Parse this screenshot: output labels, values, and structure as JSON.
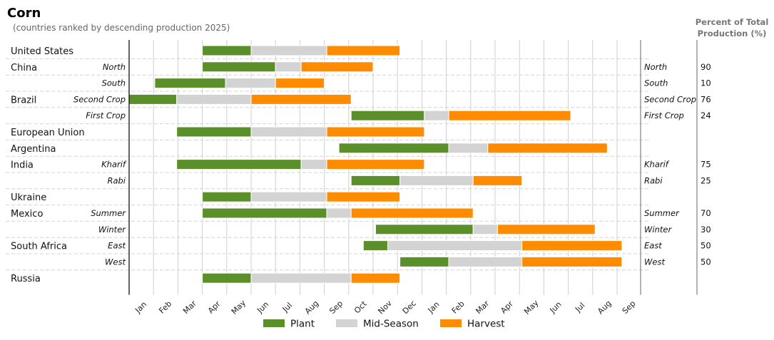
{
  "chart_data": {
    "type": "bar",
    "subtype": "gantt-calendar",
    "title": "Corn",
    "subtitle": "(countries ranked by descending production 2025)",
    "pct_header": [
      "Percent of Total",
      "Production (%)"
    ],
    "x_ticks": [
      "Jan",
      "Feb",
      "Mar",
      "Apr",
      "May",
      "Jun",
      "Jul",
      "Aug",
      "Sep",
      "Oct",
      "Nov",
      "Dec",
      "Jan",
      "Feb",
      "Mar",
      "Apr",
      "May",
      "Jun",
      "Jul",
      "Aug",
      "Sep"
    ],
    "xlim": [
      0,
      21
    ],
    "legend": [
      {
        "name": "Plant",
        "color": "#5b8f29"
      },
      {
        "name": "Mid-Season",
        "color": "#d3d3d3"
      },
      {
        "name": "Harvest",
        "color": "#ff8c00"
      }
    ],
    "series_colors": {
      "plant": "#5b8f29",
      "mid": "#d3d3d3",
      "harvest": "#ff8c00"
    },
    "rows": [
      {
        "country": "United States",
        "sub": "",
        "pct": "",
        "plant": [
          3.0,
          5.0
        ],
        "mid": [
          5.0,
          8.1
        ],
        "harvest": [
          8.1,
          11.1
        ]
      },
      {
        "country": "China",
        "sub": "North",
        "pct": "90",
        "plant": [
          3.0,
          6.0
        ],
        "mid": [
          6.0,
          7.05
        ],
        "harvest": [
          7.05,
          10.0
        ]
      },
      {
        "country": "",
        "sub": "South",
        "pct": "10",
        "plant": [
          1.05,
          3.95
        ],
        "mid": [
          3.95,
          6.0
        ],
        "harvest": [
          6.0,
          8.0
        ]
      },
      {
        "country": "Brazil",
        "sub": "Second Crop",
        "pct": "76",
        "plant": [
          0.0,
          1.95
        ],
        "mid": [
          1.95,
          5.0
        ],
        "harvest": [
          5.0,
          9.1
        ]
      },
      {
        "country": "",
        "sub": "First Crop",
        "pct": "24",
        "plant": [
          9.1,
          12.1
        ],
        "mid": [
          12.1,
          13.1
        ],
        "harvest": [
          13.1,
          18.1
        ]
      },
      {
        "country": "European Union",
        "sub": "",
        "pct": "",
        "plant": [
          1.95,
          5.0
        ],
        "mid": [
          5.0,
          8.1
        ],
        "harvest": [
          8.1,
          12.1
        ]
      },
      {
        "country": "Argentina",
        "sub": "",
        "pct": "",
        "plant": [
          8.6,
          13.1
        ],
        "mid": [
          13.1,
          14.7
        ],
        "harvest": [
          14.7,
          19.6
        ]
      },
      {
        "country": "India",
        "sub": "Kharif",
        "pct": "75",
        "plant": [
          1.95,
          7.05
        ],
        "mid": [
          7.05,
          8.1
        ],
        "harvest": [
          8.1,
          12.1
        ]
      },
      {
        "country": "",
        "sub": "Rabi",
        "pct": "25",
        "plant": [
          9.1,
          11.1
        ],
        "mid": [
          11.1,
          14.1
        ],
        "harvest": [
          14.1,
          16.1
        ]
      },
      {
        "country": "Ukraine",
        "sub": "",
        "pct": "",
        "plant": [
          3.0,
          5.0
        ],
        "mid": [
          5.0,
          8.1
        ],
        "harvest": [
          8.1,
          11.1
        ]
      },
      {
        "country": "Mexico",
        "sub": "Summer",
        "pct": "70",
        "plant": [
          3.0,
          8.1
        ],
        "mid": [
          8.1,
          9.1
        ],
        "harvest": [
          9.1,
          14.1
        ]
      },
      {
        "country": "",
        "sub": "Winter",
        "pct": "30",
        "plant": [
          10.1,
          14.1
        ],
        "mid": [
          14.1,
          15.1
        ],
        "harvest": [
          15.1,
          19.1
        ]
      },
      {
        "country": "South Africa",
        "sub": "East",
        "pct": "50",
        "plant": [
          9.6,
          10.6
        ],
        "mid": [
          10.6,
          16.1
        ],
        "harvest": [
          16.1,
          20.2
        ]
      },
      {
        "country": "",
        "sub": "West",
        "pct": "50",
        "plant": [
          11.1,
          13.1
        ],
        "mid": [
          13.1,
          16.1
        ],
        "harvest": [
          16.1,
          20.2
        ]
      },
      {
        "country": "Russia",
        "sub": "",
        "pct": "",
        "plant": [
          3.0,
          5.0
        ],
        "mid": [
          5.0,
          9.1
        ],
        "harvest": [
          9.1,
          11.1
        ]
      }
    ]
  }
}
